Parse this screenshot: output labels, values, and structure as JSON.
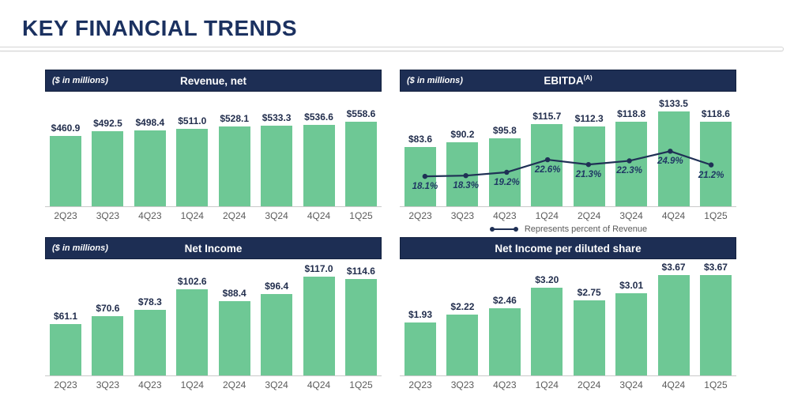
{
  "page_title": "KEY FINANCIAL TRENDS",
  "colors": {
    "navy_header": "#1d2e54",
    "bar_green": "#6ec895",
    "line_navy": "#1f3055",
    "title_navy": "#1b3160",
    "value_label_navy": "#222e4d",
    "axis_gray": "#5b5b5b"
  },
  "chart_data": [
    {
      "type": "bar",
      "title": "Revenue, net",
      "units": "($ in millions)",
      "categories": [
        "2Q23",
        "3Q23",
        "4Q23",
        "1Q24",
        "2Q24",
        "3Q24",
        "4Q24",
        "1Q25"
      ],
      "values": [
        460.9,
        492.5,
        498.4,
        511.0,
        528.1,
        533.3,
        536.6,
        558.6
      ],
      "value_labels": [
        "$460.9",
        "$492.5",
        "$498.4",
        "$511.0",
        "$528.1",
        "$533.3",
        "$536.6",
        "$558.6"
      ],
      "ylim": [
        0,
        755
      ],
      "grid": false
    },
    {
      "type": "bar+line",
      "title": "EBITDA",
      "title_superscript": "(A)",
      "units": "($ in millions)",
      "categories": [
        "2Q23",
        "3Q23",
        "4Q23",
        "1Q24",
        "2Q24",
        "3Q24",
        "4Q24",
        "1Q25"
      ],
      "values": [
        83.6,
        90.2,
        95.8,
        115.7,
        112.3,
        118.8,
        133.5,
        118.6
      ],
      "value_labels": [
        "$83.6",
        "$90.2",
        "$95.8",
        "$115.7",
        "$112.3",
        "$118.8",
        "$133.5",
        "$118.6"
      ],
      "ylim": [
        0,
        161
      ],
      "grid": false,
      "line": {
        "name": "Represents percent of Revenue",
        "values": [
          18.1,
          18.3,
          19.2,
          22.6,
          21.3,
          22.3,
          24.9,
          21.2
        ],
        "point_labels": [
          "18.1%",
          "18.3%",
          "19.2%",
          "22.6%",
          "21.3%",
          "22.3%",
          "24.9%",
          "21.2%"
        ],
        "axis_range": [
          10,
          41
        ]
      },
      "legend_label": "Represents percent of Revenue",
      "legend_position": "bottom"
    },
    {
      "type": "bar",
      "title": "Net Income",
      "units": "($ in millions)",
      "categories": [
        "2Q23",
        "3Q23",
        "4Q23",
        "1Q24",
        "2Q24",
        "3Q24",
        "4Q24",
        "1Q25"
      ],
      "values": [
        61.1,
        70.6,
        78.3,
        102.6,
        88.4,
        96.4,
        117.0,
        114.6
      ],
      "value_labels": [
        "$61.1",
        "$70.6",
        "$78.3",
        "$102.6",
        "$88.4",
        "$96.4",
        "$117.0",
        "$114.6"
      ],
      "ylim": [
        0,
        138
      ],
      "grid": false
    },
    {
      "type": "bar",
      "title": "Net Income per diluted share",
      "units": "",
      "categories": [
        "2Q23",
        "3Q23",
        "4Q23",
        "1Q24",
        "2Q24",
        "3Q24",
        "4Q24",
        "1Q25"
      ],
      "values": [
        1.93,
        2.22,
        2.46,
        3.2,
        2.75,
        3.01,
        3.67,
        3.67
      ],
      "value_labels": [
        "$1.93",
        "$2.22",
        "$2.46",
        "$3.20",
        "$2.75",
        "$3.01",
        "$3.67",
        "$3.67"
      ],
      "ylim": [
        0,
        4.25
      ],
      "grid": false
    }
  ]
}
